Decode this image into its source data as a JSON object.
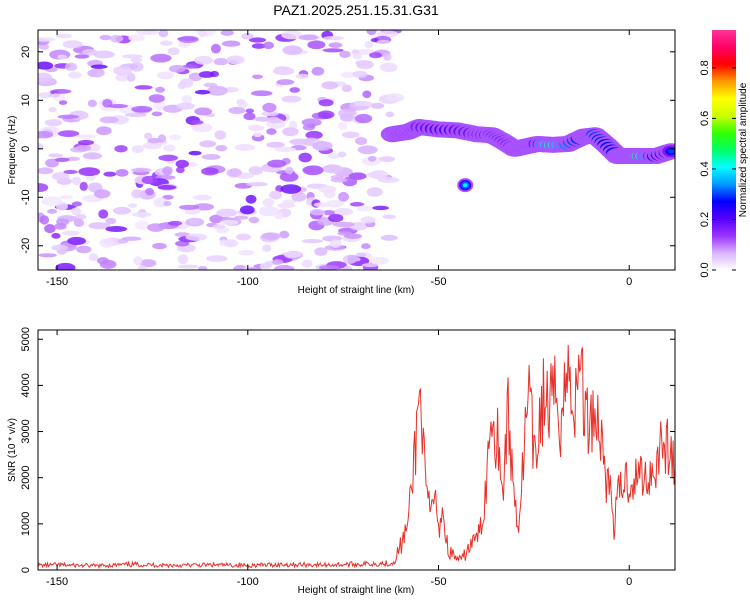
{
  "figure_title": "PAZ1.2025.251.15.31.G31",
  "chart_data": [
    {
      "type": "heatmap",
      "xlabel": "Height of straight line (km)",
      "ylabel": "Frequency (Hz)",
      "xlim": [
        -155,
        12
      ],
      "ylim": [
        -25,
        24.5
      ],
      "xticks": [
        -150,
        -100,
        -50,
        0
      ],
      "yticks": [
        -20,
        -10,
        0,
        10,
        20
      ],
      "colorbar": {
        "label": "Normalized spectral amplitude",
        "range": [
          0,
          0.95
        ],
        "ticks": [
          0,
          0.2,
          0.4,
          0.6,
          0.8
        ],
        "tick_labels": [
          "0.0",
          "0.2",
          "0.4",
          "0.6",
          "0.8"
        ],
        "colors": [
          "#ffffff",
          "#d9b3ff",
          "#9933ff",
          "#5500ff",
          "#0000ff",
          "#0099ff",
          "#00ffff",
          "#00ff66",
          "#33ff00",
          "#ccff00",
          "#ffff00",
          "#ff9900",
          "#ff0000",
          "#ff0066",
          "#ff3399"
        ]
      },
      "noise_region": {
        "x_range": [
          -155,
          -61
        ],
        "y_range": [
          -25,
          24.5
        ],
        "amplitude_range": [
          0.0,
          0.2
        ]
      },
      "signal_track": [
        {
          "x": -62,
          "y": 3.0,
          "a": 0.2
        },
        {
          "x": -58,
          "y": 3.5,
          "a": 0.25
        },
        {
          "x": -55,
          "y": 4.5,
          "a": 0.3
        },
        {
          "x": -50,
          "y": 4.0,
          "a": 0.38
        },
        {
          "x": -45,
          "y": 3.8,
          "a": 0.35
        },
        {
          "x": -40,
          "y": 3.0,
          "a": 0.3
        },
        {
          "x": -36,
          "y": 2.8,
          "a": 0.32
        },
        {
          "x": -33,
          "y": 1.5,
          "a": 0.35
        },
        {
          "x": -30,
          "y": 0.0,
          "a": 0.28
        },
        {
          "x": -27,
          "y": 0.5,
          "a": 0.3
        },
        {
          "x": -24,
          "y": 1.0,
          "a": 0.45
        },
        {
          "x": -20,
          "y": 0.8,
          "a": 0.8
        },
        {
          "x": -16,
          "y": 1.0,
          "a": 0.6
        },
        {
          "x": -12,
          "y": 2.5,
          "a": 0.5
        },
        {
          "x": -9,
          "y": 2.8,
          "a": 0.55
        },
        {
          "x": -6,
          "y": 0.8,
          "a": 0.5
        },
        {
          "x": -3,
          "y": -1.5,
          "a": 0.5
        },
        {
          "x": 0,
          "y": -1.5,
          "a": 0.5
        },
        {
          "x": 3,
          "y": -1.5,
          "a": 0.85
        },
        {
          "x": 7,
          "y": -1.5,
          "a": 0.45
        },
        {
          "x": 11,
          "y": -0.5,
          "a": 0.3
        }
      ],
      "isolated_blob": {
        "x": -43,
        "y": -7.5,
        "a": 0.4
      }
    },
    {
      "type": "line",
      "xlabel": "Height of straight line (km)",
      "ylabel": "SNR (10 * v/v)",
      "xlim": [
        -155,
        12
      ],
      "ylim": [
        0,
        5200
      ],
      "xticks": [
        -150,
        -100,
        -50,
        0
      ],
      "yticks": [
        0,
        1000,
        2000,
        3000,
        4000,
        5000
      ],
      "color": "#e8302a",
      "series": [
        {
          "x": [
            -155,
            -150,
            -140,
            -130,
            -120,
            -110,
            -100,
            -90,
            -80,
            -70,
            -62,
            -60,
            -58,
            -57,
            -56,
            -55,
            -54.5,
            -54,
            -53,
            -52,
            -51,
            -50,
            -49,
            -48,
            -47,
            -46,
            -45,
            -44,
            -43,
            -42,
            -41,
            -40,
            -39,
            -38,
            -37,
            -36,
            -35,
            -34,
            -33,
            -32,
            -31,
            -30,
            -29,
            -28,
            -27,
            -26,
            -25,
            -24,
            -23,
            -22,
            -21,
            -20,
            -19,
            -18,
            -17,
            -16,
            -15,
            -14,
            -13,
            -12.5,
            -12,
            -11,
            -10,
            -9,
            -8,
            -7,
            -6,
            -5,
            -4.5,
            -4,
            -3,
            -2,
            -1,
            0,
            1,
            2,
            3,
            4,
            5,
            6,
            7,
            8,
            9,
            10,
            11,
            12
          ],
          "y": [
            100,
            110,
            90,
            120,
            100,
            110,
            100,
            120,
            110,
            130,
            150,
            500,
            1000,
            1800,
            2800,
            3700,
            4100,
            2500,
            1500,
            1200,
            1700,
            800,
            1400,
            600,
            400,
            300,
            250,
            200,
            350,
            500,
            600,
            700,
            900,
            1400,
            2500,
            3700,
            3000,
            2800,
            1500,
            3600,
            2400,
            1600,
            900,
            2100,
            3200,
            3700,
            2300,
            2800,
            3600,
            3700,
            3500,
            3600,
            3800,
            3300,
            3900,
            4200,
            4000,
            3500,
            4500,
            5100,
            3500,
            3200,
            3400,
            3500,
            3200,
            2700,
            2000,
            1700,
            1400,
            900,
            1600,
            1800,
            2000,
            1900,
            1950,
            2000,
            2100,
            2050,
            2000,
            2200,
            2300,
            2700,
            2900,
            2600,
            2500,
            2200
          ]
        }
      ]
    }
  ]
}
